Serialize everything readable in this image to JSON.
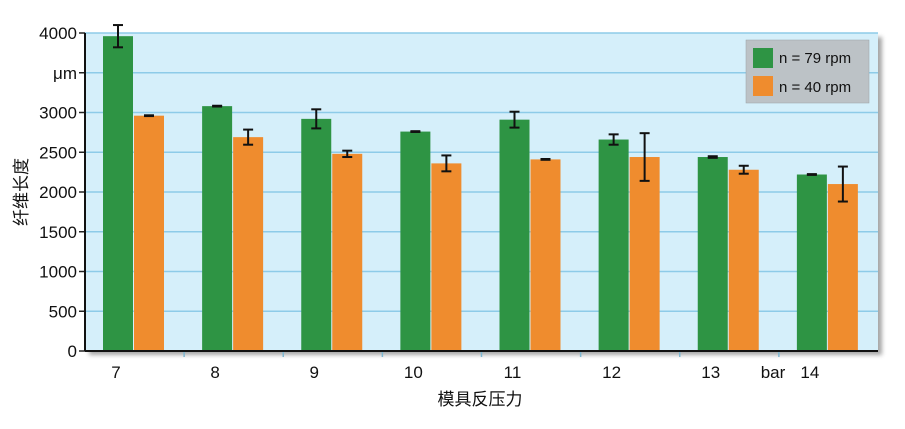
{
  "chart_data": {
    "type": "bar",
    "title": "",
    "xlabel": "模具反压力",
    "ylabel": "纤维长度",
    "y_unit_label": "μm",
    "x_unit_label": "bar",
    "categories": [
      "7",
      "8",
      "9",
      "10",
      "11",
      "12",
      "13",
      "14"
    ],
    "series": [
      {
        "name": "n = 79 rpm",
        "color": "#2e9444",
        "values": [
          3960,
          3080,
          2920,
          2760,
          2910,
          2660,
          2440,
          2220
        ],
        "errors": [
          140,
          5,
          120,
          5,
          100,
          65,
          10,
          5
        ]
      },
      {
        "name": "n = 40 rpm",
        "color": "#ef8c2e",
        "values": [
          2960,
          2690,
          2480,
          2360,
          2410,
          2440,
          2280,
          2100
        ],
        "errors": [
          5,
          95,
          40,
          100,
          5,
          300,
          50,
          220
        ]
      }
    ],
    "yticks": [
      "0",
      "500",
      "1000",
      "1500",
      "2000",
      "2500",
      "3000",
      "μm",
      "4000"
    ],
    "ylim": [
      0,
      4000
    ],
    "grid": true,
    "legend_position": "top-right",
    "background_color": "#d5effa",
    "grid_color": "#8dcbe8"
  }
}
